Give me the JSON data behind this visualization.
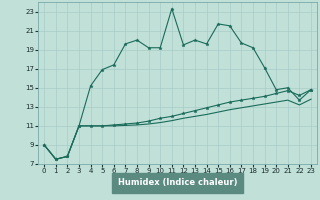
{
  "xlabel": "Humidex (Indice chaleur)",
  "bg_color": "#c0e0d8",
  "plot_bg_color": "#c0e0d8",
  "grid_color": "#a8ccc8",
  "line_color": "#1a6b5a",
  "xlabel_bg": "#5a8a80",
  "xlim": [
    -0.5,
    23.5
  ],
  "ylim": [
    7,
    24
  ],
  "yticks": [
    7,
    9,
    11,
    13,
    15,
    17,
    19,
    21,
    23
  ],
  "xticks": [
    0,
    1,
    2,
    3,
    4,
    5,
    6,
    7,
    8,
    9,
    10,
    11,
    12,
    13,
    14,
    15,
    16,
    17,
    18,
    19,
    20,
    21,
    22,
    23
  ],
  "line1_x": [
    0,
    1,
    2,
    3,
    4,
    5,
    6,
    7,
    8,
    9,
    10,
    11,
    12,
    13,
    14,
    15,
    16,
    17,
    18,
    19,
    20,
    21,
    22,
    23
  ],
  "line1_y": [
    9.0,
    7.5,
    7.8,
    11.0,
    15.2,
    16.9,
    17.4,
    19.6,
    20.0,
    19.2,
    19.2,
    23.3,
    19.5,
    20.0,
    19.6,
    21.7,
    21.5,
    19.7,
    19.2,
    17.1,
    14.8,
    15.0,
    13.7,
    14.8
  ],
  "line2_x": [
    0,
    1,
    2,
    3,
    4,
    5,
    6,
    7,
    8,
    9,
    10,
    11,
    12,
    13,
    14,
    15,
    16,
    17,
    18,
    19,
    20,
    21,
    22,
    23
  ],
  "line2_y": [
    9.0,
    7.5,
    7.8,
    11.0,
    11.0,
    11.0,
    11.1,
    11.2,
    11.3,
    11.5,
    11.8,
    12.0,
    12.3,
    12.6,
    12.9,
    13.2,
    13.5,
    13.7,
    13.9,
    14.1,
    14.4,
    14.7,
    14.2,
    14.8
  ],
  "line3_x": [
    0,
    1,
    2,
    3,
    4,
    5,
    6,
    7,
    8,
    9,
    10,
    11,
    12,
    13,
    14,
    15,
    16,
    17,
    18,
    19,
    20,
    21,
    22,
    23
  ],
  "line3_y": [
    9.0,
    7.5,
    7.8,
    11.0,
    11.0,
    11.0,
    11.0,
    11.05,
    11.1,
    11.2,
    11.35,
    11.55,
    11.8,
    12.0,
    12.2,
    12.45,
    12.7,
    12.9,
    13.1,
    13.3,
    13.5,
    13.7,
    13.2,
    13.8
  ]
}
